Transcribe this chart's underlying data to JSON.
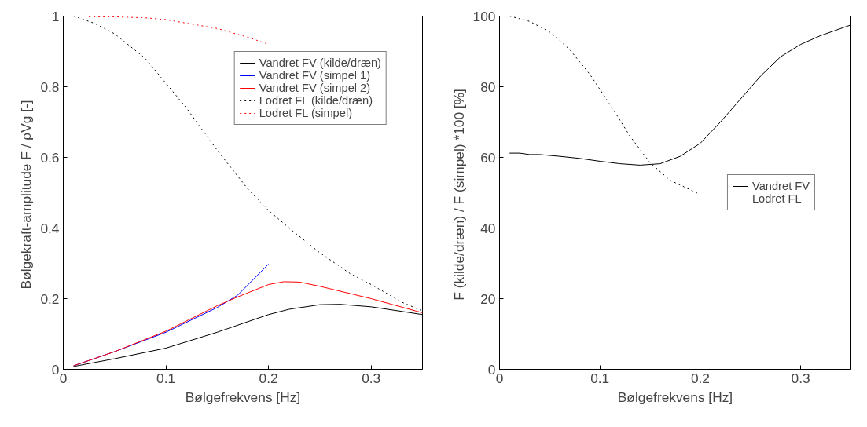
{
  "chart_data": [
    {
      "type": "line",
      "xlabel": "Bølgefrekvens [Hz]",
      "ylabel": "Bølgekraft-amplitude F / ρVg  [-]",
      "xlim": [
        0,
        0.35
      ],
      "xticks": [
        0,
        0.1,
        0.2,
        0.3
      ],
      "ylim": [
        0,
        1
      ],
      "yticks": [
        0,
        0.2,
        0.4,
        0.6,
        0.8,
        1
      ],
      "grid": false,
      "legend": "top right",
      "series": [
        {
          "name": "Vandret FV (kilde/dræn)",
          "color": "#000000",
          "line_style": "solid",
          "x": [
            0.01,
            0.05,
            0.1,
            0.15,
            0.2,
            0.22,
            0.25,
            0.27,
            0.3,
            0.35
          ],
          "values": [
            0.008,
            0.03,
            0.06,
            0.105,
            0.155,
            0.17,
            0.183,
            0.184,
            0.177,
            0.155
          ]
        },
        {
          "name": "Vandret FV (simpel 1)",
          "color": "#0000ff",
          "line_style": "solid",
          "x": [
            0.01,
            0.05,
            0.1,
            0.15,
            0.17,
            0.2
          ],
          "values": [
            0.01,
            0.05,
            0.105,
            0.175,
            0.21,
            0.298
          ]
        },
        {
          "name": "Vandret FV (simpel 2)",
          "color": "#ff0000",
          "line_style": "solid",
          "x": [
            0.01,
            0.05,
            0.1,
            0.15,
            0.17,
            0.2,
            0.215,
            0.23,
            0.25,
            0.3,
            0.35
          ],
          "values": [
            0.01,
            0.05,
            0.108,
            0.18,
            0.205,
            0.24,
            0.248,
            0.247,
            0.235,
            0.2,
            0.16
          ]
        },
        {
          "name": "Lodret FL (kilde/dræn)",
          "color": "#000000",
          "line_style": "dotted",
          "x": [
            0.01,
            0.03,
            0.05,
            0.08,
            0.1,
            0.12,
            0.15,
            0.18,
            0.2,
            0.22,
            0.25,
            0.28,
            0.3,
            0.33,
            0.35
          ],
          "values": [
            1.0,
            0.98,
            0.95,
            0.88,
            0.81,
            0.74,
            0.62,
            0.51,
            0.45,
            0.4,
            0.33,
            0.27,
            0.24,
            0.19,
            0.165
          ]
        },
        {
          "name": "Lodret FL (simpel)",
          "color": "#ff0000",
          "line_style": "dotted",
          "x": [
            0.025,
            0.05,
            0.08,
            0.1,
            0.12,
            0.15,
            0.18,
            0.2
          ],
          "values": [
            0.998,
            0.998,
            0.995,
            0.99,
            0.98,
            0.965,
            0.94,
            0.92
          ]
        }
      ]
    },
    {
      "type": "line",
      "xlabel": "Bølgefrekvens [Hz]",
      "ylabel": "F (kilde/dræn) / F (simpel) *100  [%]",
      "xlim": [
        0,
        0.35
      ],
      "xticks": [
        0,
        0.1,
        0.2,
        0.3
      ],
      "ylim": [
        0,
        100
      ],
      "yticks": [
        0,
        20,
        40,
        60,
        80,
        100
      ],
      "grid": false,
      "legend": "center right",
      "series": [
        {
          "name": "Vandret FV",
          "color": "#000000",
          "line_style": "solid",
          "x": [
            0.01,
            0.02,
            0.03,
            0.04,
            0.06,
            0.08,
            0.1,
            0.12,
            0.14,
            0.16,
            0.18,
            0.2,
            0.22,
            0.24,
            0.26,
            0.28,
            0.3,
            0.32,
            0.35
          ],
          "values": [
            61.2,
            61.2,
            60.8,
            60.8,
            60.3,
            59.7,
            58.9,
            58.2,
            57.8,
            58.2,
            60.3,
            64,
            70,
            76.5,
            83,
            88.5,
            92,
            94.5,
            97.5
          ]
        },
        {
          "name": "Lodret FL",
          "color": "#000000",
          "line_style": "dotted",
          "x": [
            0.01,
            0.03,
            0.05,
            0.07,
            0.09,
            0.11,
            0.13,
            0.15,
            0.17,
            0.2
          ],
          "values": [
            100,
            98.5,
            95.5,
            90.5,
            83.5,
            75,
            66,
            58.5,
            53.5,
            49.5
          ]
        }
      ]
    }
  ]
}
